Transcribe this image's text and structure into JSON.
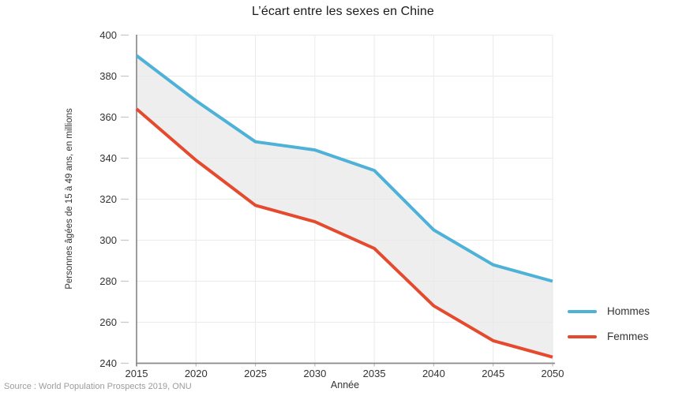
{
  "source": "Source : World Population Prospects 2019, ONU",
  "chart_data": {
    "type": "line",
    "title": "L’écart entre les sexes en Chine",
    "xlabel": "Année",
    "ylabel": "Personnes âgées de 15 à 49 ans, en millions",
    "x": [
      2015,
      2020,
      2025,
      2030,
      2035,
      2040,
      2045,
      2050
    ],
    "series": [
      {
        "name": "Hommes",
        "color": "#4EB1D8",
        "values": [
          390,
          368,
          348,
          344,
          334,
          305,
          288,
          280
        ]
      },
      {
        "name": "Femmes",
        "color": "#E64A2E",
        "values": [
          364,
          339,
          317,
          309,
          296,
          268,
          251,
          243
        ]
      }
    ],
    "band_fill": "#E8E8E8",
    "band_opacity": 0.75,
    "xlim": [
      2015,
      2050
    ],
    "ylim": [
      240,
      400
    ],
    "y_ticks": [
      240,
      260,
      280,
      300,
      320,
      340,
      360,
      380,
      400
    ],
    "grid": true,
    "legend_position": "right",
    "line_width": 4,
    "axis_color": "#8a8a8a",
    "grid_color": "#EAEAEA",
    "tick_color": "#c9c9c9",
    "tick_label_color": "#333333"
  }
}
